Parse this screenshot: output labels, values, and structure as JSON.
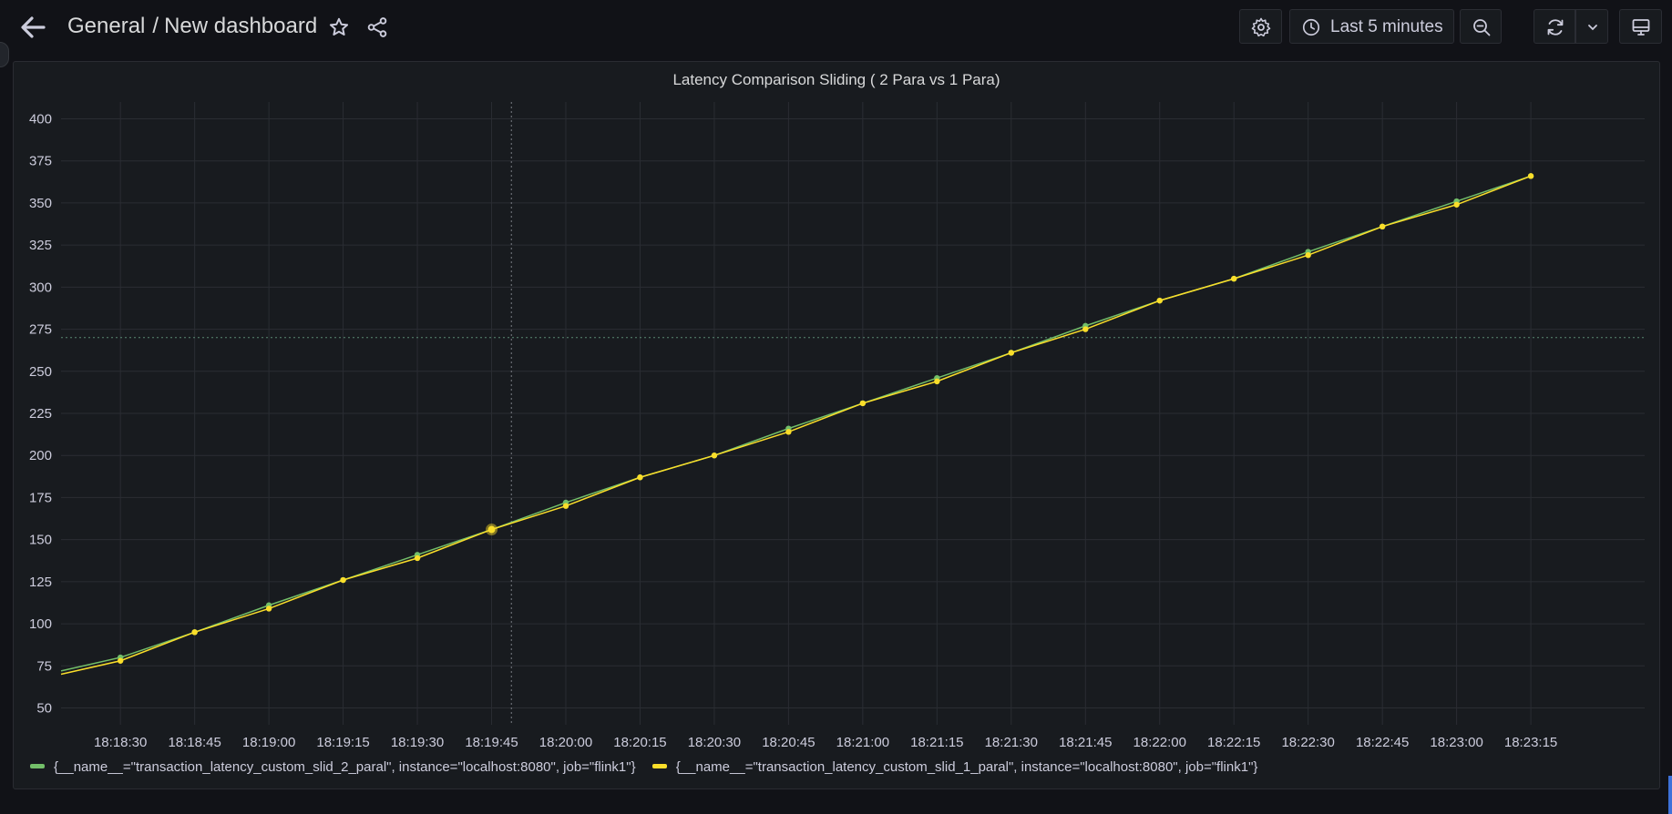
{
  "header": {
    "folder": "General",
    "separator": "/",
    "dashboard_title": "New dashboard",
    "time_range_label": "Last 5 minutes"
  },
  "icons": {
    "back": "arrow-left-icon",
    "star": "star-icon",
    "share": "share-icon",
    "settings": "gear-icon",
    "clock": "clock-icon",
    "chevron": "chevron-down-icon",
    "zoom_out": "zoom-out-icon",
    "refresh": "refresh-icon",
    "tv": "monitor-icon"
  },
  "panel": {
    "title": "Latency Comparison Sliding ( 2 Para vs 1 Para)"
  },
  "chart_data": {
    "type": "line",
    "title": "Latency Comparison Sliding ( 2 Para vs 1 Para)",
    "xlabel": "",
    "ylabel": "",
    "ylim": [
      40,
      410
    ],
    "yticks": [
      50,
      75,
      100,
      125,
      150,
      175,
      200,
      225,
      250,
      275,
      300,
      325,
      350,
      375,
      400
    ],
    "x_axis_start_seconds": 18,
    "x_axis_end_seconds": 338,
    "xticks": [
      "18:18:30",
      "18:18:45",
      "18:19:00",
      "18:19:15",
      "18:19:30",
      "18:19:45",
      "18:20:00",
      "18:20:15",
      "18:20:30",
      "18:20:45",
      "18:21:00",
      "18:21:15",
      "18:21:30",
      "18:21:45",
      "18:22:00",
      "18:22:15",
      "18:22:30",
      "18:22:45",
      "18:23:00",
      "18:23:15"
    ],
    "grid": true,
    "legend_position": "bottom-left",
    "crosshair": {
      "time": "18:19:49",
      "value": 270
    },
    "hover_point": {
      "time": "18:19:45",
      "value": 156
    },
    "series": [
      {
        "name": "{__name__=\"transaction_latency_custom_slid_2_paral\", instance=\"localhost:8080\", job=\"flink1\"}",
        "color": "#73bf69",
        "start_value": 72,
        "times": [
          "18:18:30",
          "18:18:45",
          "18:19:00",
          "18:19:15",
          "18:19:30",
          "18:19:45",
          "18:20:00",
          "18:20:15",
          "18:20:30",
          "18:20:45",
          "18:21:00",
          "18:21:15",
          "18:21:30",
          "18:21:45",
          "18:22:00",
          "18:22:15",
          "18:22:30",
          "18:22:45",
          "18:23:00",
          "18:23:15"
        ],
        "values": [
          80,
          95,
          111,
          126,
          141,
          156,
          172,
          187,
          200,
          216,
          231,
          246,
          261,
          277,
          292,
          305,
          321,
          336,
          351,
          366
        ]
      },
      {
        "name": "{__name__=\"transaction_latency_custom_slid_1_paral\", instance=\"localhost:8080\", job=\"flink1\"}",
        "color": "#fade2a",
        "start_value": 70,
        "times": [
          "18:18:30",
          "18:18:45",
          "18:19:00",
          "18:19:15",
          "18:19:30",
          "18:19:45",
          "18:20:00",
          "18:20:15",
          "18:20:30",
          "18:20:45",
          "18:21:00",
          "18:21:15",
          "18:21:30",
          "18:21:45",
          "18:22:00",
          "18:22:15",
          "18:22:30",
          "18:22:45",
          "18:23:00",
          "18:23:15"
        ],
        "values": [
          78,
          95,
          109,
          126,
          139,
          156,
          170,
          187,
          200,
          214,
          231,
          244,
          261,
          275,
          292,
          305,
          319,
          336,
          349,
          366
        ]
      }
    ]
  }
}
